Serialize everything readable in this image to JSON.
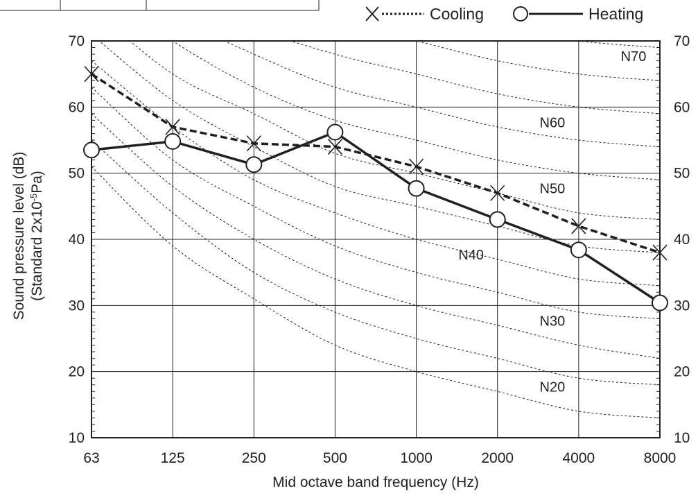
{
  "chart_data": {
    "type": "line",
    "title": "",
    "xlabel": "Mid octave band frequency  (Hz)",
    "ylabel_line1": "Sound pressure level  (dB)",
    "ylabel_line2_prefix": "(Standard 2x10",
    "ylabel_line2_exp": "-5",
    "ylabel_line2_suffix": "Pa)",
    "categories": [
      "63",
      "125",
      "250",
      "500",
      "1000",
      "2000",
      "4000",
      "8000"
    ],
    "ylim": [
      10,
      70
    ],
    "yticks": [
      "10",
      "20",
      "30",
      "40",
      "50",
      "60",
      "70"
    ],
    "grid": true,
    "legend_position": "top-right",
    "series": [
      {
        "name": "Cooling",
        "style": "dashed",
        "marker": "x",
        "values": [
          65,
          57,
          54.5,
          54,
          51,
          47,
          42,
          38
        ]
      },
      {
        "name": "Heating",
        "style": "solid",
        "marker": "circle",
        "values": [
          53.5,
          54.8,
          51.3,
          56.2,
          47.7,
          43,
          38.4,
          30.4
        ]
      }
    ],
    "nc_labels": [
      {
        "text": "N70",
        "category": "8000",
        "value": 67.7
      },
      {
        "text": "N60",
        "category": "4000",
        "value": 57.7
      },
      {
        "text": "N50",
        "category": "4000",
        "value": 47.7
      },
      {
        "text": "N40",
        "category": "2000",
        "value": 37.7
      },
      {
        "text": "N30",
        "category": "4000",
        "value": 27.7
      },
      {
        "text": "N20",
        "category": "4000",
        "value": 17.7
      }
    ],
    "nc_curves": [
      {
        "level": 20,
        "values": [
          51,
          39,
          31,
          24,
          20,
          17,
          14,
          13
        ]
      },
      {
        "level": 25,
        "values": [
          55,
          44,
          35,
          29,
          25,
          22,
          19,
          18
        ]
      },
      {
        "level": 30,
        "values": [
          59,
          48,
          40,
          34,
          30,
          27,
          24,
          22
        ]
      },
      {
        "level": 35,
        "values": [
          63,
          52,
          45,
          39,
          35,
          32,
          29,
          28
        ]
      },
      {
        "level": 40,
        "values": [
          67,
          57,
          49,
          44,
          40,
          37,
          34,
          33
        ]
      },
      {
        "level": 45,
        "values": [
          71,
          61,
          54,
          48,
          45,
          42,
          39,
          38
        ]
      },
      {
        "level": 50,
        "values": [
          75,
          65,
          59,
          53,
          50,
          47,
          44,
          43
        ]
      },
      {
        "level": 55,
        "values": [
          79,
          70,
          63,
          58,
          55,
          52,
          50,
          49
        ]
      },
      {
        "level": 60,
        "values": [
          83,
          74,
          68,
          63,
          60,
          57,
          55,
          54
        ]
      },
      {
        "level": 65,
        "values": [
          87,
          78,
          72,
          68,
          65,
          62,
          60,
          59
        ]
      },
      {
        "level": 70,
        "values": [
          91,
          83,
          77,
          73,
          70,
          67,
          65,
          64
        ]
      },
      {
        "level": 75,
        "values": [
          95,
          87,
          81,
          78,
          75,
          72,
          70,
          69
        ]
      }
    ]
  },
  "colors": {
    "ink": "#231f20",
    "grid": "#231f20",
    "curve": "#231f20"
  }
}
